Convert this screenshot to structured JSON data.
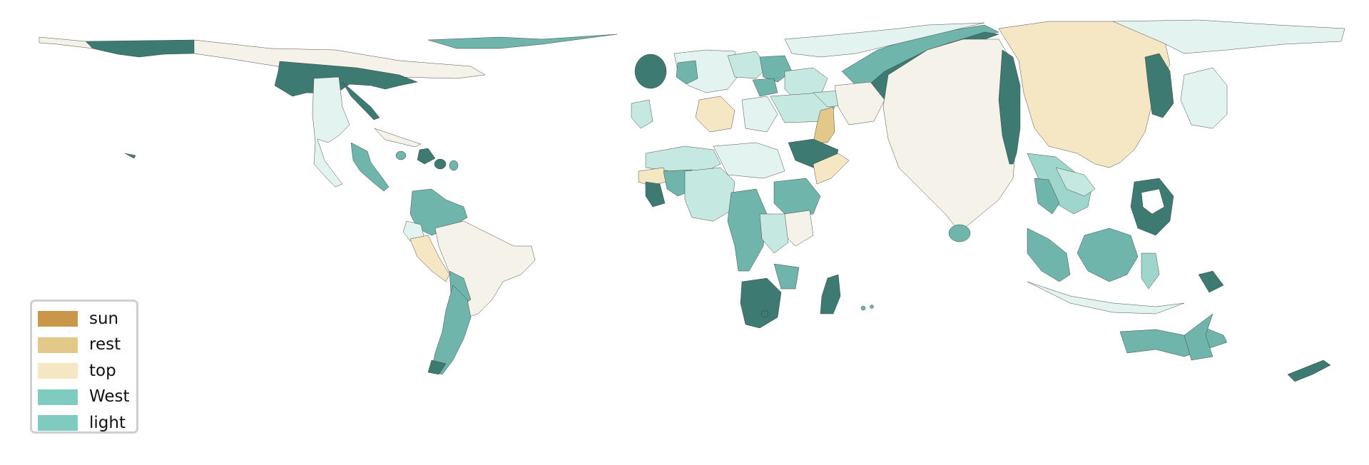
{
  "colors": {
    "darkest_teal": "#3d7a71",
    "teal": "#6fb5ab",
    "mid_teal": "#9fd6cb",
    "light_teal": "#c5e8e1",
    "pale_teal": "#e3f3f0",
    "cream": "#f5f2ea",
    "wheat": "#f5e6c4",
    "tan": "#e2c889",
    "gold": "#c9964a"
  },
  "legend": {
    "items": [
      {
        "label": "sun",
        "color": "#c9964a"
      },
      {
        "label": "rest",
        "color": "#e2c889"
      },
      {
        "label": "top",
        "color": "#f5e6c4"
      },
      {
        "label": "West",
        "color": "#80cbbf"
      },
      {
        "label": "light",
        "color": "#80cbbf"
      }
    ]
  }
}
